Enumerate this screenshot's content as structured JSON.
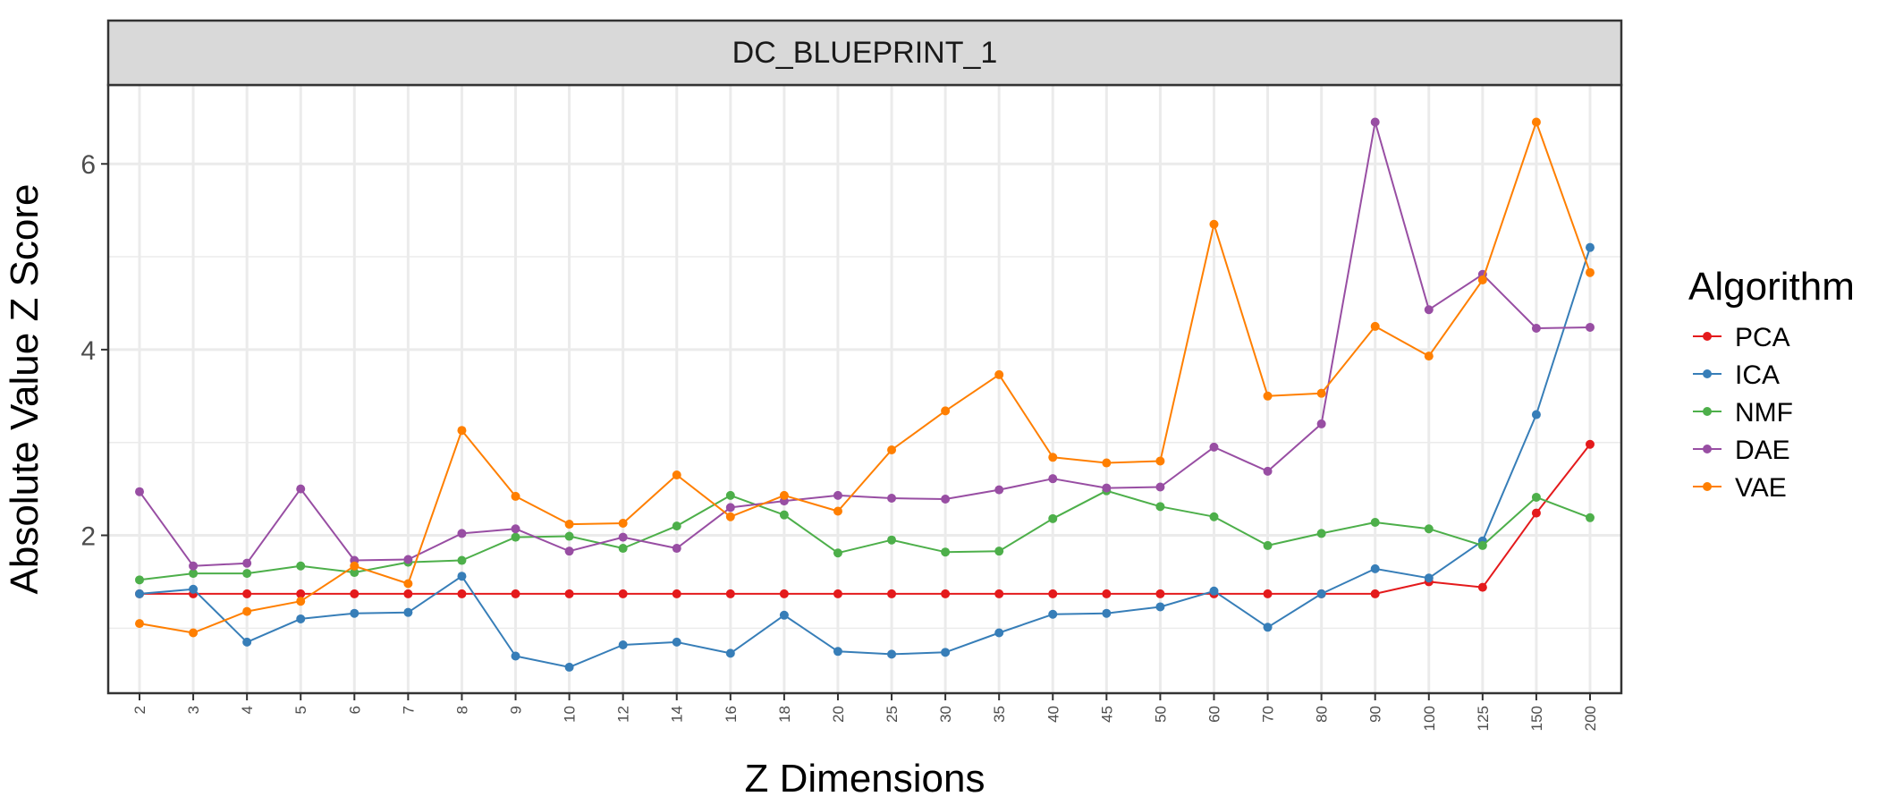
{
  "chart_data": {
    "type": "line",
    "title": "DC_BLUEPRINT_1",
    "xlabel": "Z Dimensions",
    "ylabel": "Absolute Value Z Score",
    "categories": [
      "2",
      "3",
      "4",
      "5",
      "6",
      "7",
      "8",
      "9",
      "10",
      "12",
      "14",
      "16",
      "18",
      "20",
      "25",
      "30",
      "35",
      "40",
      "45",
      "50",
      "60",
      "70",
      "80",
      "90",
      "100",
      "125",
      "150",
      "200"
    ],
    "ylim": [
      0.3,
      6.85
    ],
    "yticks": [
      2,
      4,
      6
    ],
    "grid": true,
    "legend": {
      "title": "Algorithm",
      "position": "right"
    },
    "series": [
      {
        "name": "PCA",
        "color": "#e41a1c",
        "values": [
          1.37,
          1.37,
          1.37,
          1.37,
          1.37,
          1.37,
          1.37,
          1.37,
          1.37,
          1.37,
          1.37,
          1.37,
          1.37,
          1.37,
          1.37,
          1.37,
          1.37,
          1.37,
          1.37,
          1.37,
          1.37,
          1.37,
          1.37,
          1.37,
          1.5,
          1.44,
          2.24,
          2.98
        ]
      },
      {
        "name": "ICA",
        "color": "#377eb8",
        "values": [
          1.37,
          1.42,
          0.85,
          1.1,
          1.16,
          1.17,
          1.56,
          0.7,
          0.58,
          0.82,
          0.85,
          0.73,
          1.14,
          0.75,
          0.72,
          0.74,
          0.95,
          1.15,
          1.16,
          1.23,
          1.4,
          1.01,
          1.37,
          1.64,
          1.54,
          1.94,
          3.3,
          5.1
        ]
      },
      {
        "name": "NMF",
        "color": "#4daf4a",
        "values": [
          1.52,
          1.59,
          1.59,
          1.67,
          1.6,
          1.71,
          1.73,
          1.98,
          1.99,
          1.86,
          2.1,
          2.43,
          2.22,
          1.81,
          1.95,
          1.82,
          1.83,
          2.18,
          2.48,
          2.31,
          2.2,
          1.89,
          2.02,
          2.14,
          2.07,
          1.89,
          2.41,
          2.19
        ]
      },
      {
        "name": "DAE",
        "color": "#984ea3",
        "values": [
          2.47,
          1.67,
          1.7,
          2.5,
          1.73,
          1.74,
          2.02,
          2.07,
          1.83,
          1.98,
          1.86,
          2.3,
          2.37,
          2.43,
          2.4,
          2.39,
          2.49,
          2.61,
          2.51,
          2.52,
          2.95,
          2.69,
          3.2,
          6.45,
          4.43,
          4.81,
          4.23,
          4.24
        ]
      },
      {
        "name": "VAE",
        "color": "#ff7f00",
        "values": [
          1.05,
          0.95,
          1.18,
          1.29,
          1.67,
          1.48,
          3.13,
          2.42,
          2.12,
          2.13,
          2.65,
          2.2,
          2.43,
          2.26,
          2.92,
          3.34,
          3.73,
          2.84,
          2.78,
          2.8,
          5.35,
          3.5,
          3.53,
          4.25,
          3.93,
          4.75,
          6.45,
          4.83
        ]
      }
    ]
  }
}
